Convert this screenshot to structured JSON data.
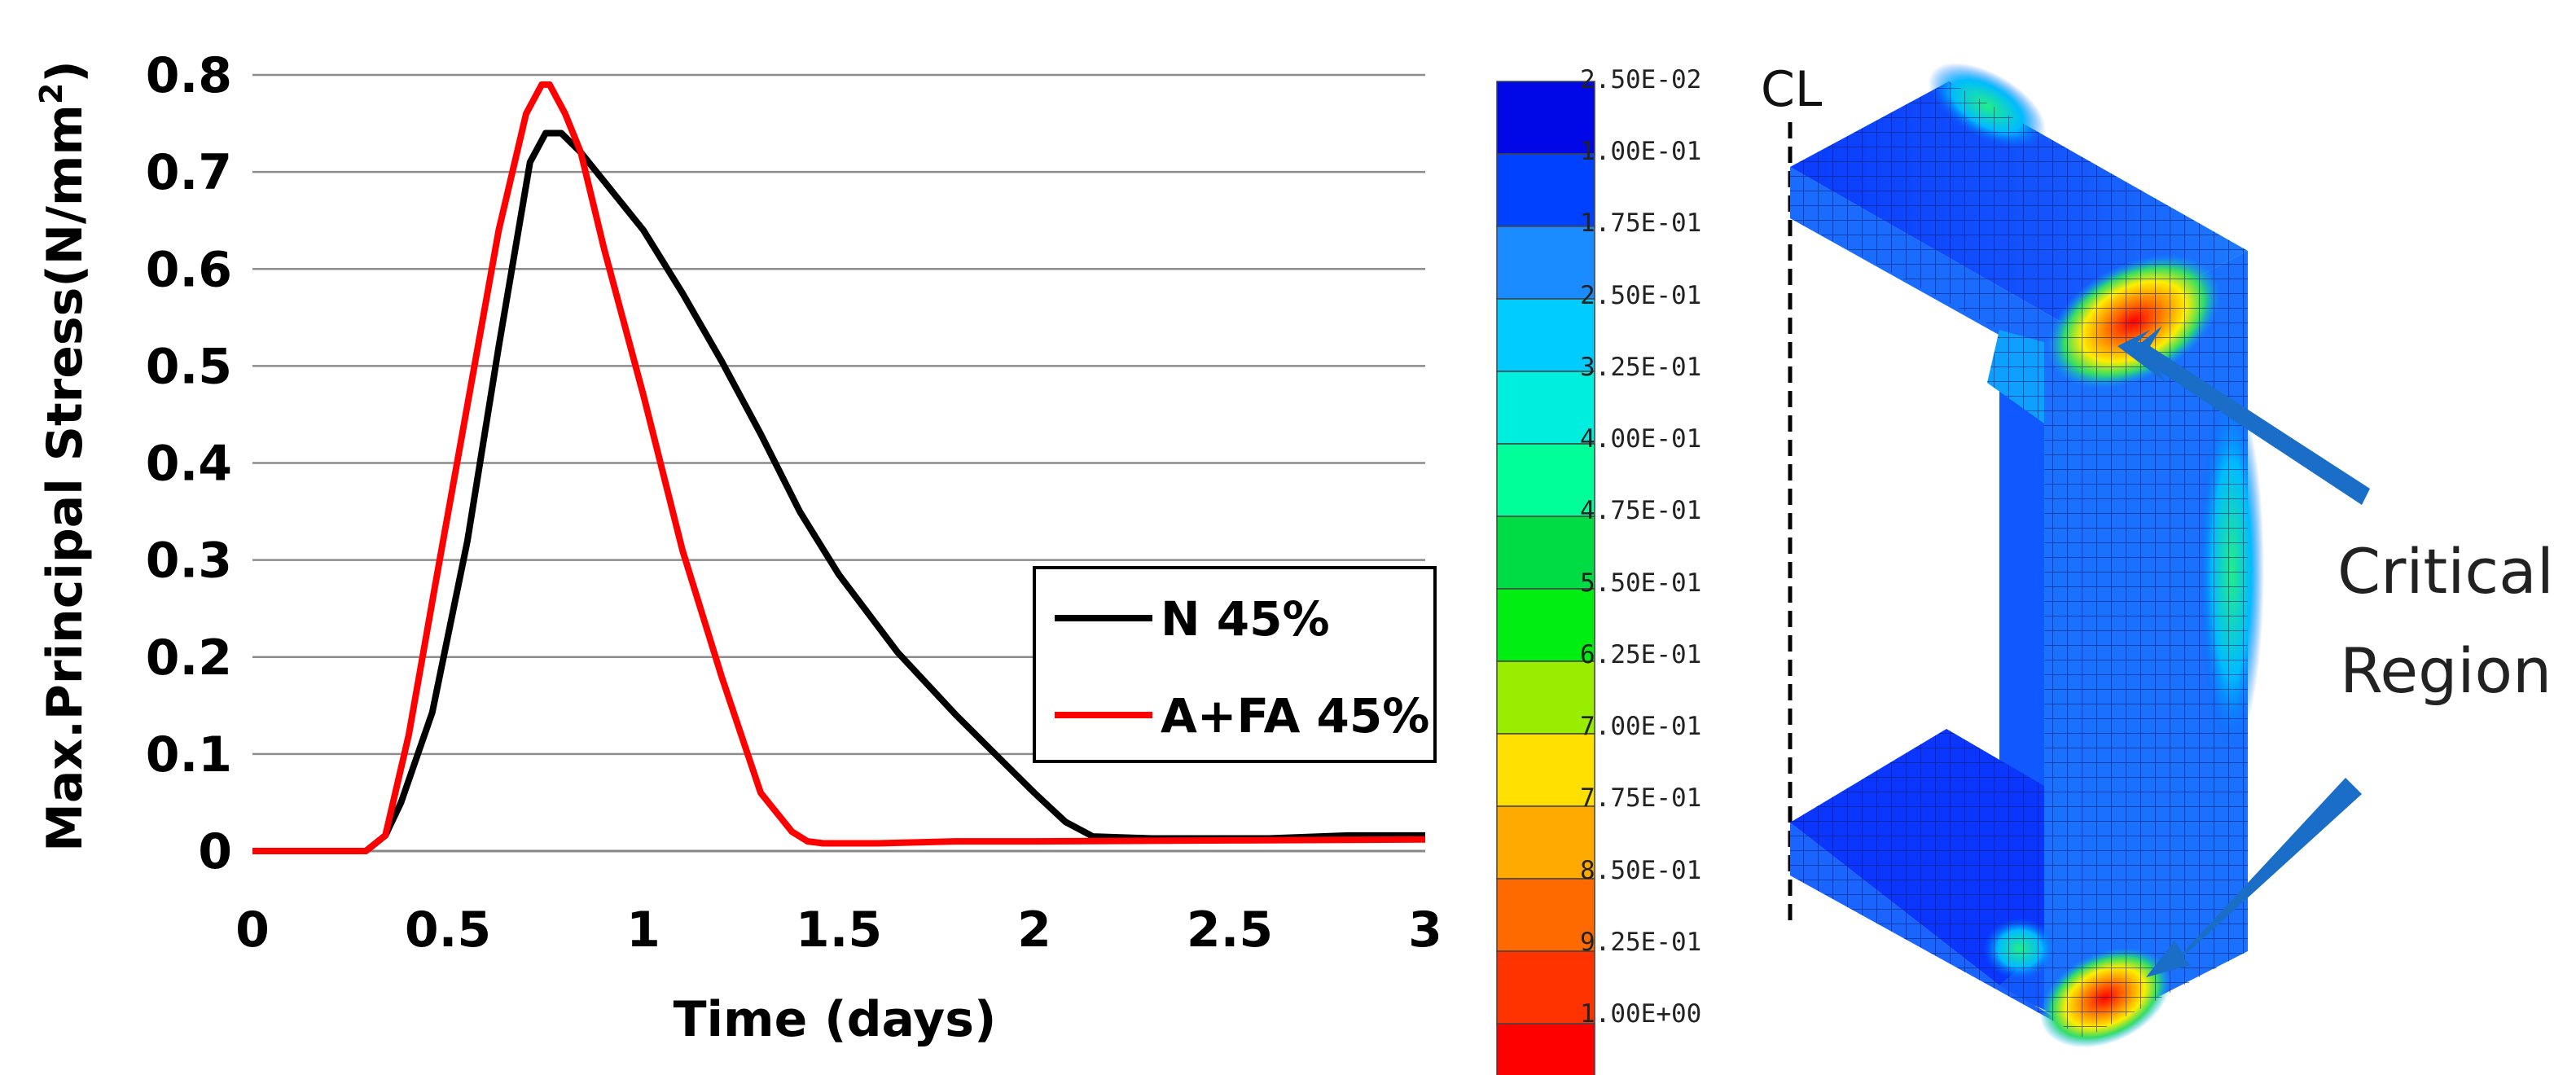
{
  "chart_data": {
    "type": "line",
    "title": "",
    "xlabel": "Time (days)",
    "ylabel_main": "Max.Principal Stress(N/mm",
    "ylabel_sup": "2",
    "ylabel_close": ")",
    "xlim": [
      0,
      3
    ],
    "ylim": [
      0,
      0.8
    ],
    "xticks": [
      0,
      0.5,
      1,
      1.5,
      2,
      2.5,
      3
    ],
    "xtick_labels": [
      "0",
      "0.5",
      "1",
      "1.5",
      "2",
      "2.5",
      "3"
    ],
    "yticks": [
      0,
      0.1,
      0.2,
      0.3,
      0.4,
      0.5,
      0.6,
      0.7,
      0.8
    ],
    "ytick_labels": [
      "0",
      "0.1",
      "0.2",
      "0.3",
      "0.4",
      "0.5",
      "0.6",
      "0.7",
      "0.8"
    ],
    "grid": "horizontal",
    "legend_position": "lower-right",
    "series": [
      {
        "name": "N 45%",
        "color": "#000000",
        "x": [
          0,
          0.25,
          0.29,
          0.34,
          0.38,
          0.46,
          0.55,
          0.63,
          0.71,
          0.75,
          0.79,
          0.84,
          0.9,
          1.0,
          1.1,
          1.2,
          1.3,
          1.4,
          1.5,
          1.65,
          1.8,
          1.9,
          2.0,
          2.08,
          2.15,
          2.3,
          2.5,
          2.6,
          2.8,
          3.0
        ],
        "y": [
          0,
          0,
          0,
          0.016,
          0.05,
          0.143,
          0.32,
          0.52,
          0.71,
          0.74,
          0.74,
          0.72,
          0.69,
          0.64,
          0.575,
          0.505,
          0.43,
          0.35,
          0.285,
          0.205,
          0.14,
          0.1,
          0.06,
          0.03,
          0.015,
          0.013,
          0.013,
          0.013,
          0.016,
          0.016
        ]
      },
      {
        "name": "A+FA 45%",
        "color": "#ff0000",
        "x": [
          0,
          0.25,
          0.29,
          0.34,
          0.4,
          0.47,
          0.55,
          0.63,
          0.7,
          0.74,
          0.76,
          0.8,
          0.84,
          0.9,
          1.0,
          1.1,
          1.2,
          1.3,
          1.38,
          1.42,
          1.46,
          1.6,
          1.8,
          2.0,
          2.5,
          3.0
        ],
        "y": [
          0,
          0,
          0,
          0.016,
          0.12,
          0.28,
          0.46,
          0.64,
          0.76,
          0.79,
          0.79,
          0.76,
          0.72,
          0.62,
          0.47,
          0.31,
          0.18,
          0.06,
          0.02,
          0.01,
          0.008,
          0.008,
          0.01,
          0.01,
          0.011,
          0.012
        ]
      }
    ]
  },
  "colorbar": {
    "labels": [
      "2.50E-02",
      "1.00E-01",
      "1.75E-01",
      "2.50E-01",
      "3.25E-01",
      "4.00E-01",
      "4.75E-01",
      "5.50E-01",
      "6.25E-01",
      "7.00E-01",
      "7.75E-01",
      "8.50E-01",
      "9.25E-01",
      "1.00E+00"
    ],
    "colors": [
      "#0008e8",
      "#0040ff",
      "#1a8cff",
      "#00ccff",
      "#00eedd",
      "#00ff99",
      "#00dd44",
      "#00ee11",
      "#99ee00",
      "#ffe000",
      "#ffaa00",
      "#ff6a00",
      "#ff3300",
      "#ff0000"
    ]
  },
  "model": {
    "cl_label": "CL",
    "annotation_line1": "Critical",
    "annotation_line2": "Region",
    "arrow_color": "#1a6ec8"
  }
}
